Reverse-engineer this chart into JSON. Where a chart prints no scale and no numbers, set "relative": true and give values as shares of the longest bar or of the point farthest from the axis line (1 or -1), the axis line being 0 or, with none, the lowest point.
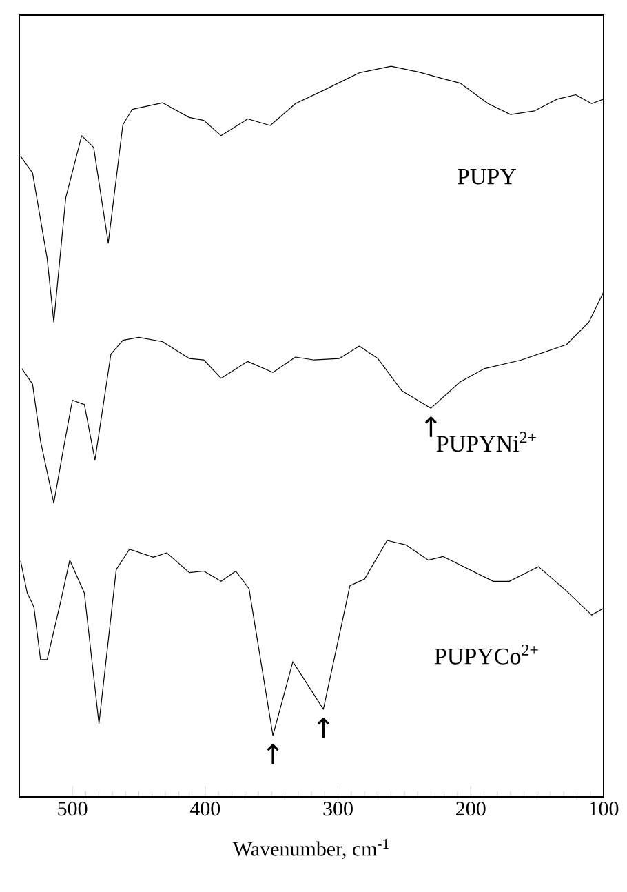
{
  "chart_data": {
    "type": "line",
    "relative": true,
    "xlabel": "Wavenumber, cm$^{-1}$",
    "xlim": [
      540,
      100
    ],
    "xticks": [
      500,
      400,
      300,
      200,
      100
    ],
    "legend": false,
    "grid": false,
    "series": [
      {
        "name": "PUPY",
        "color": "#000000",
        "x": [
          539,
          530,
          519,
          514,
          505,
          493,
          484,
          473,
          462,
          455,
          432,
          412,
          401,
          388,
          368,
          351,
          332,
          311,
          284,
          260,
          239,
          221,
          208,
          187,
          170,
          152,
          135,
          121,
          109,
          100
        ],
        "values": [
          0.877,
          0.854,
          0.737,
          0.65,
          0.82,
          0.905,
          0.889,
          0.758,
          0.92,
          0.941,
          0.95,
          0.93,
          0.926,
          0.905,
          0.928,
          0.919,
          0.949,
          0.967,
          0.991,
          1.0,
          0.992,
          0.983,
          0.977,
          0.949,
          0.934,
          0.939,
          0.955,
          0.961,
          0.949,
          0.955
        ]
      },
      {
        "name": "PUPYNi$^{2+}$",
        "color": "#000000",
        "x": [
          538,
          530,
          524,
          514,
          507,
          500,
          491,
          483,
          471,
          462,
          450,
          432,
          412,
          401,
          388,
          368,
          349,
          332,
          318,
          299,
          284,
          270,
          252,
          230,
          208,
          190,
          162,
          128,
          111,
          100
        ],
        "values": [
          0.586,
          0.565,
          0.487,
          0.402,
          0.474,
          0.543,
          0.537,
          0.461,
          0.606,
          0.625,
          0.629,
          0.623,
          0.6,
          0.598,
          0.573,
          0.596,
          0.581,
          0.602,
          0.598,
          0.6,
          0.617,
          0.6,
          0.556,
          0.532,
          0.568,
          0.586,
          0.598,
          0.619,
          0.65,
          0.691
        ]
      },
      {
        "name": "PUPYCo$^{2+}$",
        "color": "#000000",
        "x": [
          539,
          534,
          529,
          524,
          519,
          509,
          502,
          491,
          480,
          467,
          457,
          439,
          429,
          412,
          401,
          388,
          377,
          367,
          349,
          334,
          311,
          291,
          280,
          263,
          249,
          232,
          221,
          183,
          171,
          149,
          128,
          109,
          100
        ],
        "values": [
          0.323,
          0.279,
          0.26,
          0.188,
          0.188,
          0.266,
          0.324,
          0.279,
          0.1,
          0.311,
          0.339,
          0.328,
          0.334,
          0.307,
          0.309,
          0.295,
          0.309,
          0.285,
          0.084,
          0.185,
          0.12,
          0.289,
          0.298,
          0.351,
          0.345,
          0.324,
          0.329,
          0.295,
          0.295,
          0.315,
          0.282,
          0.249,
          0.258
        ]
      }
    ],
    "annotations": [
      {
        "text": "↑",
        "x": 230,
        "y": 0.532
      },
      {
        "text": "↑",
        "x": 349,
        "y": 0.084
      },
      {
        "text": "↑",
        "x": 311,
        "y": 0.12
      }
    ]
  }
}
